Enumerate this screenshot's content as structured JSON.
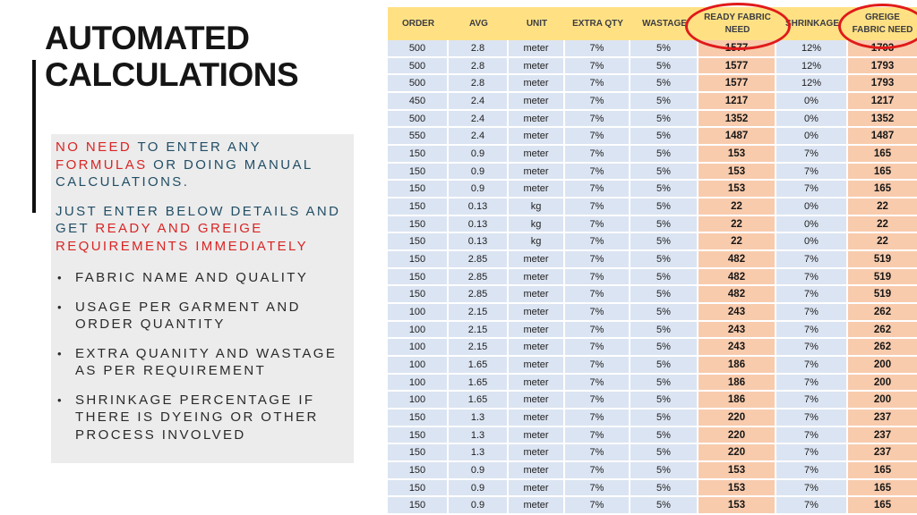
{
  "left_panel": {
    "title_line1": "AUTOMATED",
    "title_line2": "CALCULATIONS",
    "para1_segments": [
      {
        "text": "NO NEED ",
        "color": "red"
      },
      {
        "text": "TO ENTER ANY ",
        "color": "navy"
      },
      {
        "text": "FORMULAS ",
        "color": "red"
      },
      {
        "text": "OR DOING MANUAL CALCULATIONS.",
        "color": "navy"
      }
    ],
    "para2_segments": [
      {
        "text": "JUST ENTER BELOW DETAILS AND GET ",
        "color": "navy"
      },
      {
        "text": "READY AND GREIGE REQUIREMENTS IMMEDIATELY",
        "color": "red"
      }
    ],
    "bullets": [
      "FABRIC NAME AND QUALITY",
      "USAGE PER GARMENT AND ORDER QUANTITY",
      "EXTRA QUANITY AND WASTAGE AS PER REQUIREMENT",
      "SHRINKAGE PERCENTAGE IF THERE IS DYEING OR OTHER PROCESS INVOLVED"
    ],
    "bullet_char": "•"
  },
  "table": {
    "columns": [
      "ORDER",
      "AVG",
      "UNIT",
      "EXTRA QTY",
      "WASTAGE",
      "READY FABRIC\nNEED",
      "SHRINKAGE",
      "GREIGE\nFABRIC NEED"
    ],
    "highlight_columns": [
      5,
      7
    ],
    "circled_columns": [
      "READY FABRIC NEED",
      "GREIGE FABRIC NEED"
    ],
    "rows": [
      [
        "500",
        "2.8",
        "meter",
        "7%",
        "5%",
        "1577",
        "12%",
        "1793"
      ],
      [
        "500",
        "2.8",
        "meter",
        "7%",
        "5%",
        "1577",
        "12%",
        "1793"
      ],
      [
        "500",
        "2.8",
        "meter",
        "7%",
        "5%",
        "1577",
        "12%",
        "1793"
      ],
      [
        "450",
        "2.4",
        "meter",
        "7%",
        "5%",
        "1217",
        "0%",
        "1217"
      ],
      [
        "500",
        "2.4",
        "meter",
        "7%",
        "5%",
        "1352",
        "0%",
        "1352"
      ],
      [
        "550",
        "2.4",
        "meter",
        "7%",
        "5%",
        "1487",
        "0%",
        "1487"
      ],
      [
        "150",
        "0.9",
        "meter",
        "7%",
        "5%",
        "153",
        "7%",
        "165"
      ],
      [
        "150",
        "0.9",
        "meter",
        "7%",
        "5%",
        "153",
        "7%",
        "165"
      ],
      [
        "150",
        "0.9",
        "meter",
        "7%",
        "5%",
        "153",
        "7%",
        "165"
      ],
      [
        "150",
        "0.13",
        "kg",
        "7%",
        "5%",
        "22",
        "0%",
        "22"
      ],
      [
        "150",
        "0.13",
        "kg",
        "7%",
        "5%",
        "22",
        "0%",
        "22"
      ],
      [
        "150",
        "0.13",
        "kg",
        "7%",
        "5%",
        "22",
        "0%",
        "22"
      ],
      [
        "150",
        "2.85",
        "meter",
        "7%",
        "5%",
        "482",
        "7%",
        "519"
      ],
      [
        "150",
        "2.85",
        "meter",
        "7%",
        "5%",
        "482",
        "7%",
        "519"
      ],
      [
        "150",
        "2.85",
        "meter",
        "7%",
        "5%",
        "482",
        "7%",
        "519"
      ],
      [
        "100",
        "2.15",
        "meter",
        "7%",
        "5%",
        "243",
        "7%",
        "262"
      ],
      [
        "100",
        "2.15",
        "meter",
        "7%",
        "5%",
        "243",
        "7%",
        "262"
      ],
      [
        "100",
        "2.15",
        "meter",
        "7%",
        "5%",
        "243",
        "7%",
        "262"
      ],
      [
        "100",
        "1.65",
        "meter",
        "7%",
        "5%",
        "186",
        "7%",
        "200"
      ],
      [
        "100",
        "1.65",
        "meter",
        "7%",
        "5%",
        "186",
        "7%",
        "200"
      ],
      [
        "100",
        "1.65",
        "meter",
        "7%",
        "5%",
        "186",
        "7%",
        "200"
      ],
      [
        "150",
        "1.3",
        "meter",
        "7%",
        "5%",
        "220",
        "7%",
        "237"
      ],
      [
        "150",
        "1.3",
        "meter",
        "7%",
        "5%",
        "220",
        "7%",
        "237"
      ],
      [
        "150",
        "1.3",
        "meter",
        "7%",
        "5%",
        "220",
        "7%",
        "237"
      ],
      [
        "150",
        "0.9",
        "meter",
        "7%",
        "5%",
        "153",
        "7%",
        "165"
      ],
      [
        "150",
        "0.9",
        "meter",
        "7%",
        "5%",
        "153",
        "7%",
        "165"
      ],
      [
        "150",
        "0.9",
        "meter",
        "7%",
        "5%",
        "153",
        "7%",
        "165"
      ]
    ]
  },
  "colors": {
    "header_bg": "#ffe183",
    "row_bg": "#dbe4f2",
    "highlight_bg": "#f8cbad",
    "oval_red": "#e01a1a",
    "text_red": "#d92424",
    "text_navy": "#214e66",
    "panel_gray": "#ececec"
  }
}
